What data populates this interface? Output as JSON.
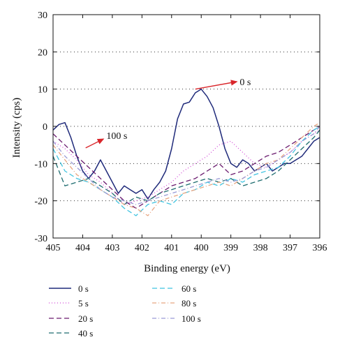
{
  "chart_data": {
    "type": "line",
    "title": "",
    "xlabel": "Binding energy (eV)",
    "ylabel": "Intensity (cps)",
    "xlim": [
      405,
      396
    ],
    "ylim": [
      -30,
      30
    ],
    "x_reversed": true,
    "xticks": [
      405,
      404,
      403,
      402,
      401,
      400,
      399,
      398,
      397,
      396
    ],
    "yticks": [
      -30,
      -20,
      -10,
      0,
      10,
      20,
      30
    ],
    "grid": "horizontal-dotted",
    "legend_position": "below",
    "annotations": [
      {
        "text": "0 s",
        "arrow_from": [
          400.2,
          10.0
        ],
        "arrow_to": [
          398.8,
          12.0
        ],
        "text_pos": [
          398.7,
          12.0
        ]
      },
      {
        "text": "100 s",
        "arrow_from": [
          403.9,
          -5.8
        ],
        "arrow_to": [
          403.3,
          -3.4
        ],
        "text_pos": [
          403.2,
          -2.4
        ]
      }
    ],
    "series": [
      {
        "name": "0 s",
        "color": "#1f2a7a",
        "dash": "solid",
        "x": [
          405,
          404.8,
          404.6,
          404.4,
          404.2,
          404.0,
          403.8,
          403.6,
          403.4,
          403.2,
          403.0,
          402.8,
          402.6,
          402.4,
          402.2,
          402.0,
          401.8,
          401.6,
          401.4,
          401.2,
          401.0,
          400.8,
          400.6,
          400.4,
          400.2,
          400.0,
          399.8,
          399.6,
          399.4,
          399.2,
          399.0,
          398.8,
          398.6,
          398.4,
          398.2,
          398.0,
          397.8,
          397.6,
          397.4,
          397.2,
          397.0,
          396.8,
          396.6,
          396.4,
          396.2,
          396.0
        ],
        "y": [
          -1,
          0.5,
          1,
          -3,
          -8,
          -12,
          -14,
          -12,
          -9,
          -12,
          -15,
          -18,
          -16,
          -17,
          -18,
          -17,
          -19.5,
          -17,
          -15,
          -12,
          -6,
          2,
          6,
          6.5,
          9,
          10,
          8,
          5,
          0,
          -6,
          -10,
          -11,
          -9,
          -10,
          -12,
          -11,
          -10,
          -12,
          -11,
          -10,
          -10,
          -9,
          -8,
          -6,
          -4,
          -3
        ]
      },
      {
        "name": "5 s",
        "color": "#d24bd6",
        "dash": "1,3",
        "x": [
          405,
          404.6,
          404.2,
          403.8,
          403.4,
          403.0,
          402.6,
          402.2,
          401.8,
          401.4,
          401.0,
          400.6,
          400.2,
          399.8,
          399.4,
          399.0,
          398.6,
          398.2,
          397.8,
          397.4,
          397.0,
          396.6,
          396.2,
          396.0
        ],
        "y": [
          -4,
          -6,
          -9,
          -13,
          -15,
          -18,
          -21,
          -20,
          -19,
          -17,
          -15,
          -12,
          -10,
          -8,
          -5,
          -4,
          -7,
          -10,
          -11,
          -9,
          -7,
          -4,
          -2,
          -1
        ]
      },
      {
        "name": "20 s",
        "color": "#6a1a6e",
        "dash": "7,4",
        "x": [
          405,
          404.6,
          404.2,
          403.8,
          403.4,
          403.0,
          402.6,
          402.2,
          401.8,
          401.4,
          401.0,
          400.6,
          400.2,
          399.8,
          399.4,
          399.0,
          398.6,
          398.2,
          397.8,
          397.4,
          397.0,
          396.6,
          396.2,
          396.0
        ],
        "y": [
          -2,
          -5,
          -8,
          -11,
          -14,
          -17,
          -20,
          -22,
          -20,
          -18,
          -16,
          -15,
          -14,
          -12,
          -10,
          -13,
          -12,
          -10,
          -8,
          -7,
          -5,
          -3,
          -1,
          0
        ]
      },
      {
        "name": "40 s",
        "color": "#1d6c6f",
        "dash": "7,4",
        "x": [
          405,
          404.6,
          404.2,
          403.8,
          403.4,
          403.0,
          402.6,
          402.2,
          401.8,
          401.4,
          401.0,
          400.6,
          400.2,
          399.8,
          399.4,
          399.0,
          398.6,
          398.2,
          397.8,
          397.4,
          397.0,
          396.6,
          396.2,
          396.0
        ],
        "y": [
          -8,
          -16,
          -15,
          -14,
          -16,
          -18,
          -21,
          -19,
          -20,
          -18,
          -17,
          -16,
          -15,
          -14,
          -15,
          -14,
          -16,
          -15,
          -14,
          -12,
          -9,
          -6,
          -3,
          -1
        ]
      },
      {
        "name": "60 s",
        "color": "#3fc3e0",
        "dash": "7,4",
        "x": [
          405,
          404.6,
          404.2,
          403.8,
          403.4,
          403.0,
          402.6,
          402.2,
          401.8,
          401.4,
          401.0,
          400.6,
          400.2,
          399.8,
          399.4,
          399.0,
          398.6,
          398.2,
          397.8,
          397.4,
          397.0,
          396.6,
          396.2,
          396.0
        ],
        "y": [
          -6,
          -12,
          -14,
          -15,
          -17,
          -19,
          -22,
          -24,
          -21,
          -20,
          -21,
          -18,
          -17,
          -15,
          -16,
          -14,
          -15,
          -13,
          -12,
          -11,
          -8,
          -4,
          -1,
          0
        ]
      },
      {
        "name": "80 s",
        "color": "#e8a682",
        "dash": "6,3,1,3",
        "x": [
          405,
          404.6,
          404.2,
          403.8,
          403.4,
          403.0,
          402.6,
          402.2,
          401.8,
          401.4,
          401.0,
          400.6,
          400.2,
          399.8,
          399.4,
          399.0,
          398.6,
          398.2,
          397.8,
          397.4,
          397.0,
          396.6,
          396.2,
          396.0
        ],
        "y": [
          -5,
          -9,
          -13,
          -15,
          -17,
          -19,
          -21,
          -22,
          -24,
          -20,
          -19,
          -18,
          -17,
          -16,
          -15,
          -16,
          -14,
          -12,
          -10,
          -9,
          -6,
          -3,
          0,
          1
        ]
      },
      {
        "name": "100 s",
        "color": "#9a9ad6",
        "dash": "6,3,1,3",
        "x": [
          405,
          404.6,
          404.2,
          403.8,
          403.4,
          403.0,
          402.6,
          402.2,
          401.8,
          401.4,
          401.0,
          400.6,
          400.2,
          399.8,
          399.4,
          399.0,
          398.6,
          398.2,
          397.8,
          397.4,
          397.0,
          396.6,
          396.2,
          396.0
        ],
        "y": [
          -4,
          -8,
          -11,
          -14,
          -17,
          -19,
          -20,
          -21,
          -20,
          -19,
          -18,
          -17,
          -16,
          -15,
          -14,
          -15,
          -14,
          -12,
          -11,
          -9,
          -7,
          -4,
          -2,
          0
        ]
      }
    ]
  }
}
